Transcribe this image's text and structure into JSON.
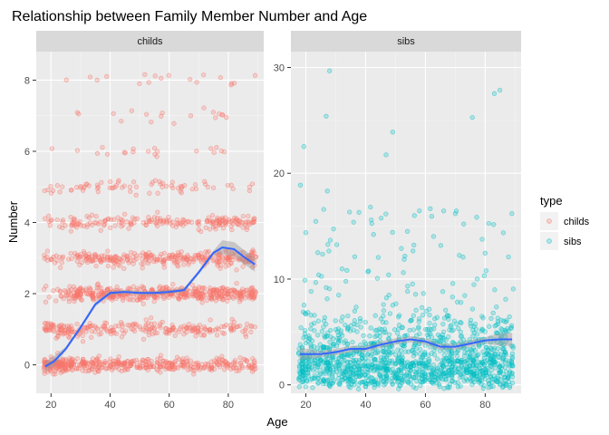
{
  "chart_data": {
    "type": "scatter",
    "title": "Relationship between Family Member Number and Age",
    "xlabel": "Age",
    "ylabel": "Number",
    "grid": true,
    "legend": {
      "title": "type",
      "placement": "right",
      "entries": [
        {
          "label": "childs",
          "color": "#F8766D"
        },
        {
          "label": "sibs",
          "color": "#00BFC4"
        }
      ]
    },
    "smooth_color": "#3366FF",
    "panels": [
      {
        "strip": "childs",
        "color": "#F8766D",
        "xlim": [
          15,
          92
        ],
        "ylim": [
          -0.8,
          8.8
        ],
        "xticks": [
          20,
          40,
          60,
          80
        ],
        "yticks": [
          0,
          2,
          4,
          6,
          8
        ],
        "point_count": 1800,
        "smooth": {
          "x": [
            18,
            21,
            25,
            30,
            35,
            40,
            45,
            50,
            55,
            60,
            65,
            70,
            75,
            78,
            82,
            85,
            89
          ],
          "y": [
            -0.05,
            0.1,
            0.45,
            1.05,
            1.7,
            2.02,
            2.05,
            2.02,
            2.02,
            2.05,
            2.1,
            2.6,
            3.15,
            3.3,
            3.25,
            3.05,
            2.82
          ]
        }
      },
      {
        "strip": "sibs",
        "color": "#00BFC4",
        "xlim": [
          15,
          92
        ],
        "ylim": [
          -0.8,
          31.5
        ],
        "xticks": [
          20,
          40,
          60,
          80
        ],
        "yticks": [
          0,
          10,
          20,
          30
        ],
        "point_count": 1400,
        "smooth": {
          "x": [
            18,
            25,
            30,
            35,
            40,
            45,
            50,
            55,
            60,
            65,
            70,
            75,
            80,
            85,
            89
          ],
          "y": [
            2.9,
            2.9,
            3.1,
            3.4,
            3.4,
            3.8,
            4.1,
            4.3,
            4.1,
            3.6,
            3.6,
            3.9,
            4.2,
            4.3,
            4.3
          ]
        }
      }
    ]
  }
}
